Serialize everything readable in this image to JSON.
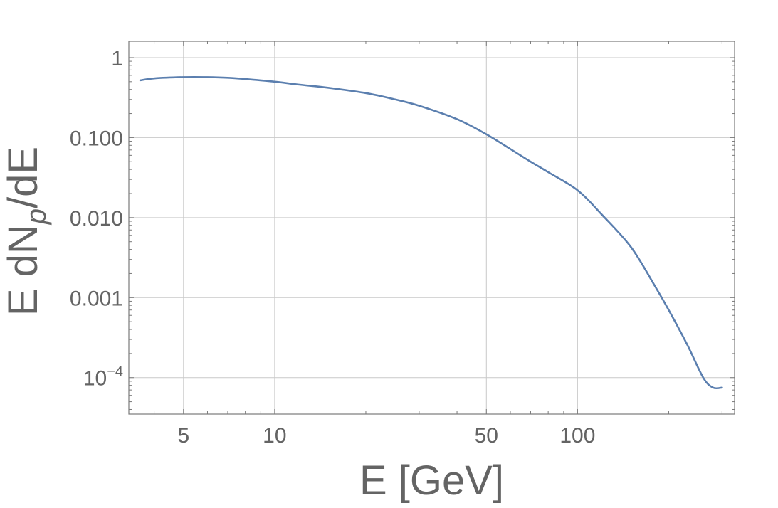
{
  "chart_data": {
    "type": "line",
    "title": "",
    "xlabel": "E [GeV]",
    "ylabel_main": "E dN",
    "ylabel_sub": "p",
    "ylabel_tail": "/dE",
    "x_scale": "log",
    "y_scale": "log",
    "xlim": [
      3.3,
      330
    ],
    "ylim": [
      3.5e-05,
      1.6
    ],
    "grid": true,
    "legend": "none",
    "x_ticks": [
      {
        "value": 5,
        "label": "5"
      },
      {
        "value": 10,
        "label": "10"
      },
      {
        "value": 50,
        "label": "50"
      },
      {
        "value": 100,
        "label": "100"
      }
    ],
    "y_ticks": [
      {
        "value": 1,
        "label": "1",
        "sup": ""
      },
      {
        "value": 0.1,
        "label": "0.100",
        "sup": ""
      },
      {
        "value": 0.01,
        "label": "0.010",
        "sup": ""
      },
      {
        "value": 0.001,
        "label": "0.001",
        "sup": ""
      },
      {
        "value": 0.0001,
        "label": "10",
        "sup": "−4"
      }
    ],
    "series": [
      {
        "color": "#5b7faf",
        "x": [
          3.6,
          4,
          5,
          6,
          7,
          8,
          10,
          12,
          15,
          20,
          25,
          30,
          40,
          50,
          60,
          70,
          80,
          100,
          120,
          150,
          180,
          200,
          230,
          260,
          280,
          300
        ],
        "y": [
          0.52,
          0.55,
          0.57,
          0.57,
          0.56,
          0.54,
          0.5,
          0.46,
          0.42,
          0.36,
          0.3,
          0.25,
          0.17,
          0.11,
          0.072,
          0.05,
          0.037,
          0.022,
          0.011,
          0.0043,
          0.0014,
          0.0007,
          0.00026,
          0.0001,
          7.5e-05,
          7.5e-05
        ]
      }
    ]
  }
}
